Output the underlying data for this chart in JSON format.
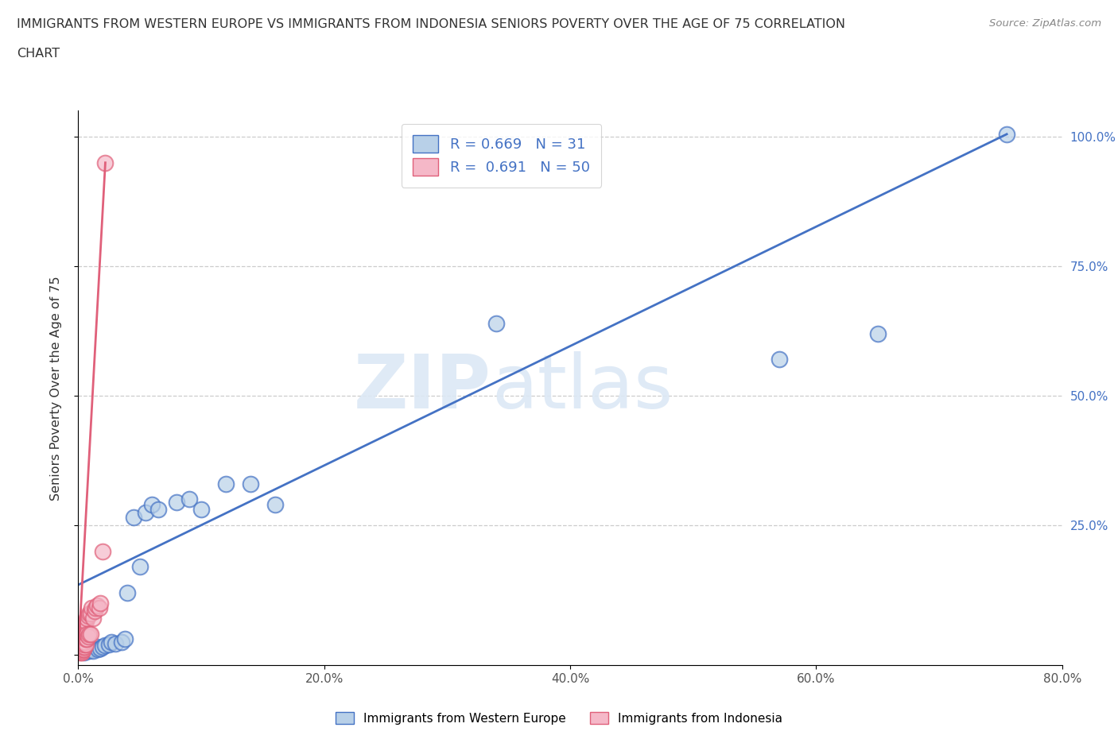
{
  "title_line1": "IMMIGRANTS FROM WESTERN EUROPE VS IMMIGRANTS FROM INDONESIA SENIORS POVERTY OVER THE AGE OF 75 CORRELATION",
  "title_line2": "CHART",
  "source": "Source: ZipAtlas.com",
  "ylabel": "Seniors Poverty Over the Age of 75",
  "legend_label1": "Immigrants from Western Europe",
  "legend_label2": "Immigrants from Indonesia",
  "R1": 0.669,
  "N1": 31,
  "R2": 0.691,
  "N2": 50,
  "blue_color": "#b8d0e8",
  "pink_color": "#f5b8c8",
  "blue_line_color": "#4472c4",
  "pink_line_color": "#e0607a",
  "watermark_zip": "ZIP",
  "watermark_atlas": "atlas",
  "xlim": [
    0,
    0.8
  ],
  "ylim": [
    -0.02,
    1.05
  ],
  "xticks": [
    0.0,
    0.2,
    0.4,
    0.6,
    0.8
  ],
  "xtick_labels": [
    "0.0%",
    "20.0%",
    "40.0%",
    "60.0%",
    "80.0%"
  ],
  "ytick_labels_right": [
    "100.0%",
    "75.0%",
    "50.0%",
    "25.0%"
  ],
  "yticks_right": [
    1.0,
    0.75,
    0.5,
    0.25
  ],
  "blue_x": [
    0.005,
    0.007,
    0.009,
    0.01,
    0.012,
    0.015,
    0.016,
    0.018,
    0.02,
    0.022,
    0.025,
    0.027,
    0.03,
    0.035,
    0.038,
    0.04,
    0.045,
    0.05,
    0.055,
    0.06,
    0.065,
    0.08,
    0.09,
    0.1,
    0.12,
    0.14,
    0.16,
    0.34,
    0.57,
    0.65,
    0.755
  ],
  "blue_y": [
    0.005,
    0.01,
    0.008,
    0.01,
    0.008,
    0.015,
    0.01,
    0.012,
    0.015,
    0.018,
    0.02,
    0.025,
    0.022,
    0.025,
    0.03,
    0.12,
    0.265,
    0.17,
    0.275,
    0.29,
    0.28,
    0.295,
    0.3,
    0.28,
    0.33,
    0.33,
    0.29,
    0.64,
    0.57,
    0.62,
    1.005
  ],
  "pink_x": [
    0.001,
    0.001,
    0.001,
    0.001,
    0.002,
    0.002,
    0.002,
    0.002,
    0.002,
    0.003,
    0.003,
    0.003,
    0.003,
    0.003,
    0.003,
    0.003,
    0.003,
    0.004,
    0.004,
    0.004,
    0.004,
    0.004,
    0.004,
    0.004,
    0.005,
    0.005,
    0.005,
    0.005,
    0.005,
    0.006,
    0.006,
    0.006,
    0.007,
    0.007,
    0.007,
    0.008,
    0.008,
    0.009,
    0.009,
    0.01,
    0.01,
    0.011,
    0.012,
    0.013,
    0.014,
    0.015,
    0.017,
    0.018,
    0.02,
    0.022
  ],
  "pink_y": [
    0.005,
    0.006,
    0.007,
    0.01,
    0.005,
    0.008,
    0.01,
    0.015,
    0.02,
    0.005,
    0.008,
    0.01,
    0.012,
    0.015,
    0.02,
    0.025,
    0.03,
    0.01,
    0.015,
    0.02,
    0.025,
    0.035,
    0.04,
    0.05,
    0.015,
    0.02,
    0.025,
    0.055,
    0.06,
    0.02,
    0.03,
    0.065,
    0.03,
    0.04,
    0.07,
    0.035,
    0.075,
    0.04,
    0.08,
    0.04,
    0.08,
    0.09,
    0.07,
    0.085,
    0.09,
    0.095,
    0.09,
    0.1,
    0.2,
    0.95
  ],
  "blue_trend_x": [
    0.0,
    0.755
  ],
  "blue_trend_y": [
    0.135,
    1.005
  ],
  "pink_trend_x": [
    0.0,
    0.022
  ],
  "pink_trend_y": [
    0.0,
    0.95
  ]
}
